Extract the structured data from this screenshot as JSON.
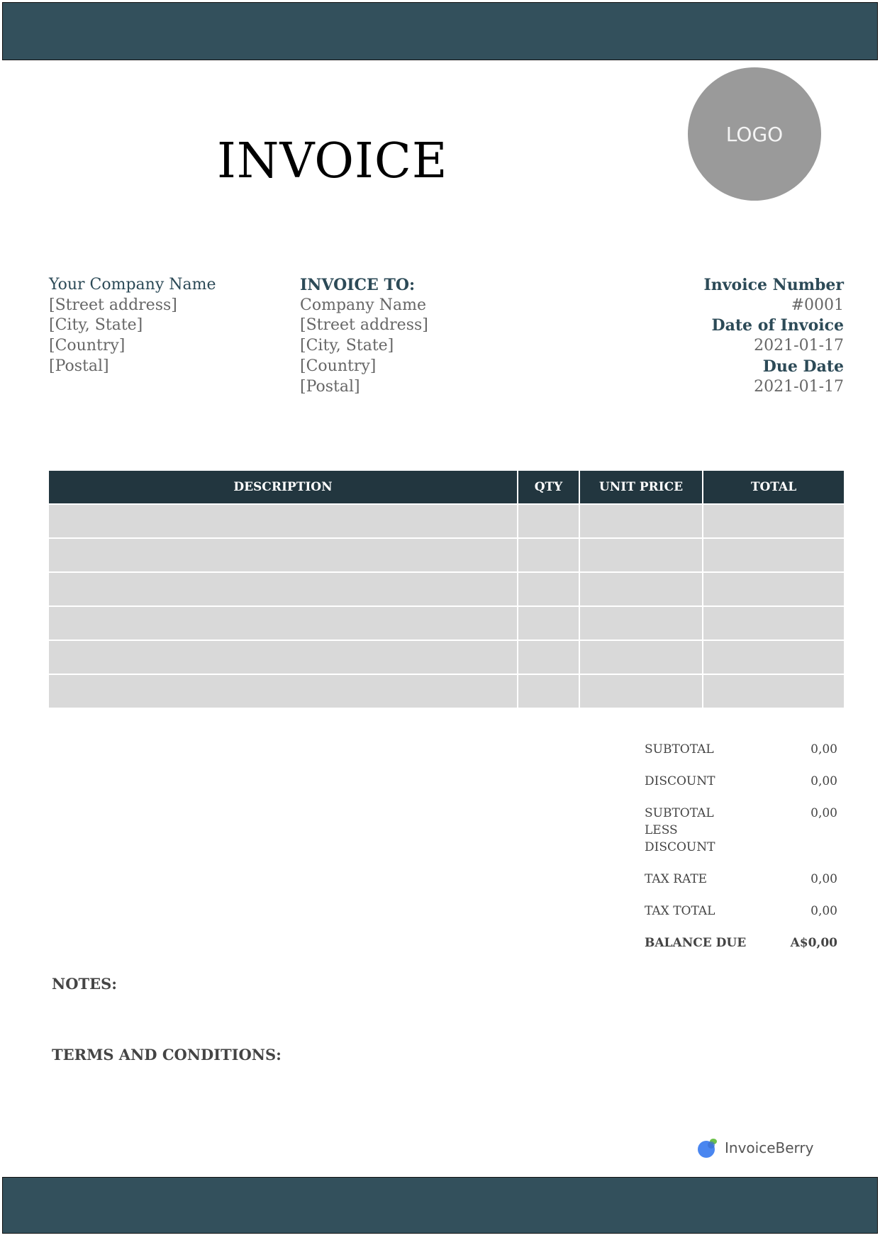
{
  "title": "INVOICE",
  "logo_placeholder": "LOGO",
  "sender": {
    "name": "Your Company Name",
    "lines": [
      "[Street address]",
      "[City, State]",
      "[Country]",
      "[Postal]"
    ]
  },
  "recipient": {
    "heading": "INVOICE TO:",
    "lines": [
      "Company Name",
      "[Street address]",
      "[City, State]",
      "[Country]",
      "[Postal]"
    ]
  },
  "meta": {
    "invoice_number_label": "Invoice Number",
    "invoice_number": "#0001",
    "date_label": "Date of Invoice",
    "date": "2021-01-17",
    "due_label": "Due Date",
    "due": "2021-01-17"
  },
  "table": {
    "headers": [
      "DESCRIPTION",
      "QTY",
      "UNIT PRICE",
      "TOTAL"
    ],
    "empty_rows": 6
  },
  "totals": [
    {
      "label": "SUBTOTAL",
      "value": "0,00"
    },
    {
      "label": "DISCOUNT",
      "value": "0,00"
    },
    {
      "label": "SUBTOTAL LESS DISCOUNT",
      "value": "0,00"
    },
    {
      "label": "TAX RATE",
      "value": "0,00"
    },
    {
      "label": "TAX TOTAL",
      "value": "0,00"
    },
    {
      "label": "BALANCE DUE",
      "value": "A$0,00"
    }
  ],
  "notes_label": "NOTES:",
  "terms_label": "TERMS AND CONDITIONS:",
  "brand": "InvoiceBerry",
  "colors": {
    "bar": "#33505c",
    "table_header": "#22363f",
    "accent_text": "#2c4a57",
    "row_fill": "#d9d9d9"
  }
}
